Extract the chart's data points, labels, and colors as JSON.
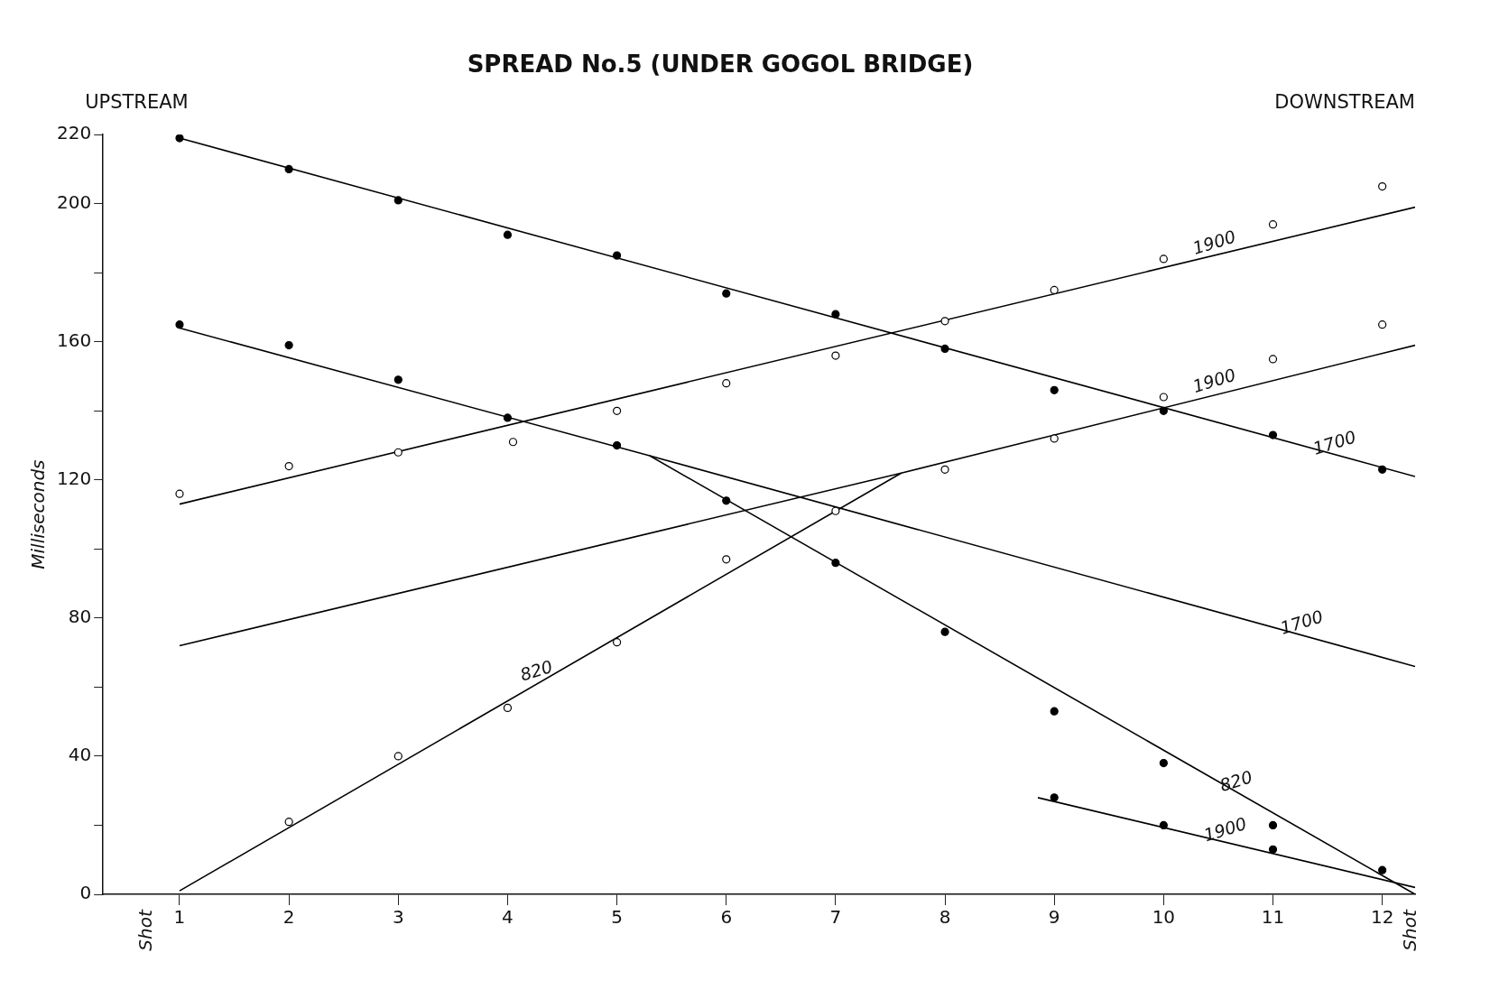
{
  "chart_data": {
    "type": "scatter",
    "title": "SPREAD No.5 (UNDER GOGOL BRIDGE)",
    "ylabel": "Milliseconds",
    "annotations": [
      "UPSTREAM",
      "DOWNSTREAM",
      "Shot",
      "Shot",
      {
        "text": "1900",
        "x": 10.5,
        "y": 185
      },
      {
        "text": "1900",
        "x": 10.5,
        "y": 145
      },
      {
        "text": "1700",
        "x": 11.6,
        "y": 127
      },
      {
        "text": "1700",
        "x": 11.3,
        "y": 75
      },
      {
        "text": "820",
        "x": 4.3,
        "y": 61
      },
      {
        "text": "820",
        "x": 10.7,
        "y": 29
      },
      {
        "text": "1900",
        "x": 10.6,
        "y": 15
      }
    ],
    "xlim": [
      0.3,
      12.3
    ],
    "xticks": [
      1,
      2,
      3,
      4,
      5,
      6,
      7,
      8,
      9,
      10,
      11,
      12
    ],
    "ylim": [
      0,
      220
    ],
    "yticks": [
      0,
      {
        "value": 20,
        "label": null
      },
      40,
      {
        "value": 60,
        "label": null
      },
      80,
      {
        "value": 100,
        "label": null
      },
      120,
      {
        "value": 140,
        "label": null
      },
      160,
      {
        "value": 180,
        "label": null
      },
      200,
      220
    ],
    "marker": "circle",
    "series": [
      {
        "color": "#000000",
        "x": [
          1,
          2,
          3,
          4,
          5,
          6,
          7,
          8,
          9,
          10,
          11,
          12
        ],
        "values": [
          219,
          210,
          201,
          191,
          185,
          174,
          168,
          158,
          146,
          140,
          133,
          123
        ]
      },
      {
        "color": "#000000",
        "x": [
          1,
          2,
          3,
          4,
          5,
          6,
          7,
          8,
          9,
          10,
          11,
          12
        ],
        "values": [
          165,
          159,
          149,
          138,
          130,
          114,
          96,
          76,
          53,
          38,
          20,
          7
        ]
      },
      {
        "color": "#000000",
        "x": [
          9,
          10,
          11
        ],
        "values": [
          28,
          20,
          13
        ]
      },
      {
        "color": "#ffffff",
        "x": [
          2,
          3,
          4,
          5,
          6,
          7,
          8,
          9,
          10,
          11,
          12
        ],
        "values": [
          21,
          40,
          54,
          73,
          97,
          111,
          123,
          132,
          144,
          155,
          165
        ]
      },
      {
        "color": "#ffffff",
        "x": [
          1,
          2,
          3,
          4.05,
          5,
          6,
          7,
          8,
          9,
          10,
          11,
          12
        ],
        "values": [
          116,
          124,
          128,
          131,
          140,
          148,
          156,
          166,
          175,
          184,
          194,
          205
        ]
      },
      {
        "type": "line",
        "marker": "none",
        "color": "#000000",
        "x": [
          1,
          12.3
        ],
        "values": [
          219,
          121
        ]
      },
      {
        "type": "line",
        "marker": "none",
        "color": "#000000",
        "x": [
          1,
          5.3,
          12.3
        ],
        "values": [
          164,
          127,
          0
        ]
      },
      {
        "type": "line",
        "marker": "none",
        "color": "#000000",
        "x": [
          5.3,
          12.3
        ],
        "values": [
          127,
          66
        ]
      },
      {
        "type": "line",
        "marker": "none",
        "color": "#000000",
        "x": [
          1,
          7.6,
          12.3
        ],
        "values": [
          1,
          122,
          159
        ]
      },
      {
        "type": "line",
        "marker": "none",
        "color": "#000000",
        "x": [
          1,
          7.6
        ],
        "values": [
          72,
          122
        ]
      },
      {
        "type": "line",
        "marker": "none",
        "color": "#000000",
        "x": [
          1,
          12.3
        ],
        "values": [
          113,
          199
        ]
      },
      {
        "type": "line",
        "marker": "none",
        "color": "#000000",
        "x": [
          8.85,
          12.3
        ],
        "values": [
          28,
          2
        ]
      }
    ]
  }
}
